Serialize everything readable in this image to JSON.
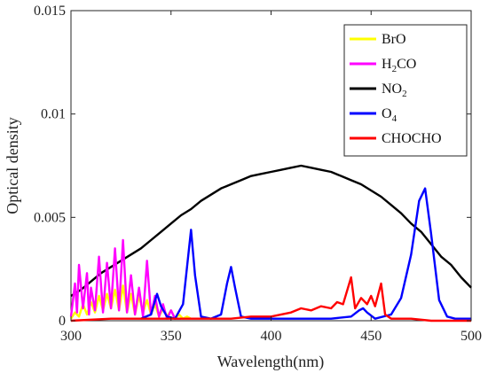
{
  "chart_data": {
    "type": "line",
    "title": "",
    "xlabel": "Wavelength(nm)",
    "ylabel": "Optical density",
    "xlim": [
      300,
      500
    ],
    "ylim": [
      0,
      0.015
    ],
    "x_ticks": [
      "300",
      "350",
      "400",
      "450",
      "500"
    ],
    "y_ticks": [
      "0",
      "0.005",
      "0.01",
      "0.015"
    ],
    "legend_position": "top-right",
    "legend": [
      {
        "base": "BrO",
        "sub": "",
        "color": "#ffff00"
      },
      {
        "base": "H",
        "sub": "2",
        "tail": "CO",
        "color": "#ff00ff"
      },
      {
        "base": "NO",
        "sub": "2",
        "tail": "",
        "color": "#000000"
      },
      {
        "base": "O",
        "sub": "4",
        "tail": "",
        "color": "#0000ff"
      },
      {
        "base": "CHOCHO",
        "sub": "",
        "tail": "",
        "color": "#ff0000"
      }
    ],
    "series": [
      {
        "name": "NO2",
        "color": "#000000",
        "x": [
          300,
          305,
          310,
          315,
          320,
          325,
          330,
          335,
          340,
          345,
          350,
          355,
          360,
          365,
          370,
          375,
          380,
          385,
          390,
          395,
          400,
          405,
          410,
          415,
          420,
          425,
          430,
          435,
          440,
          445,
          450,
          455,
          460,
          465,
          470,
          475,
          480,
          485,
          490,
          495,
          500
        ],
        "y": [
          0.0012,
          0.0015,
          0.0019,
          0.0023,
          0.0026,
          0.0029,
          0.0032,
          0.0035,
          0.0039,
          0.0043,
          0.0047,
          0.0051,
          0.0054,
          0.0058,
          0.0061,
          0.0064,
          0.0066,
          0.0068,
          0.007,
          0.0071,
          0.0072,
          0.0073,
          0.0074,
          0.0075,
          0.0074,
          0.0073,
          0.0072,
          0.007,
          0.0068,
          0.0066,
          0.0063,
          0.006,
          0.0056,
          0.0052,
          0.0047,
          0.0043,
          0.0037,
          0.0031,
          0.0027,
          0.0021,
          0.0016
        ]
      },
      {
        "name": "BrO",
        "color": "#ffff00",
        "x": [
          300,
          302,
          304,
          306,
          308,
          310,
          312,
          314,
          316,
          318,
          320,
          322,
          324,
          326,
          328,
          330,
          332,
          334,
          336,
          338,
          340,
          342,
          344,
          346,
          348,
          350,
          352,
          354,
          356,
          358,
          360
        ],
        "y": [
          0.0001,
          0.0004,
          0.0002,
          0.0008,
          0.0003,
          0.0009,
          0.0004,
          0.0012,
          0.0005,
          0.0013,
          0.0006,
          0.0015,
          0.0005,
          0.0017,
          0.0004,
          0.0013,
          0.0003,
          0.0012,
          0.0004,
          0.001,
          0.0003,
          0.0008,
          0.0002,
          0.0006,
          0.0002,
          0.0005,
          0.0001,
          0.0003,
          0.0001,
          0.0002,
          0.0001
        ]
      },
      {
        "name": "H2CO",
        "color": "#ff00ff",
        "x": [
          300,
          302,
          303,
          304,
          306,
          308,
          309,
          310,
          312,
          314,
          316,
          318,
          320,
          322,
          324,
          326,
          328,
          330,
          332,
          334,
          336,
          338,
          340,
          342,
          344,
          346,
          348,
          350,
          352,
          355
        ],
        "y": [
          0.0002,
          0.0018,
          0.0004,
          0.0027,
          0.0006,
          0.0023,
          0.0003,
          0.0016,
          0.0005,
          0.0031,
          0.0004,
          0.0028,
          0.0006,
          0.0035,
          0.0005,
          0.0039,
          0.0004,
          0.0022,
          0.0003,
          0.0016,
          0.0002,
          0.0029,
          0.0003,
          0.0012,
          0.0002,
          0.0008,
          0.0001,
          0.0005,
          0.0001,
          0.0001
        ]
      },
      {
        "name": "O4",
        "color": "#0000ff",
        "x": [
          335,
          340,
          343,
          345,
          348,
          352,
          356,
          358,
          360,
          362,
          365,
          370,
          375,
          378,
          380,
          382,
          385,
          390,
          400,
          410,
          420,
          430,
          440,
          444,
          446,
          448,
          452,
          460,
          465,
          470,
          474,
          477,
          480,
          484,
          488,
          492,
          500
        ],
        "y": [
          0.0001,
          0.0003,
          0.0013,
          0.0007,
          0.0002,
          0.0001,
          0.0008,
          0.0026,
          0.0044,
          0.0022,
          0.0002,
          0.0001,
          0.0003,
          0.0018,
          0.0026,
          0.0016,
          0.0002,
          0.0001,
          0.0001,
          0.0001,
          0.0001,
          0.0001,
          0.0002,
          0.0005,
          0.0006,
          0.0004,
          0.0001,
          0.0003,
          0.0011,
          0.0032,
          0.0058,
          0.0064,
          0.0042,
          0.001,
          0.0002,
          0.0001,
          0.0001
        ]
      },
      {
        "name": "CHOCHO",
        "color": "#ff0000",
        "x": [
          300,
          320,
          340,
          360,
          380,
          390,
          400,
          410,
          415,
          420,
          425,
          430,
          433,
          436,
          440,
          442,
          445,
          448,
          450,
          452,
          455,
          457,
          460,
          470,
          480,
          490,
          500
        ],
        "y": [
          0.0,
          0.0001,
          0.0001,
          0.0001,
          0.0001,
          0.0002,
          0.0002,
          0.0004,
          0.0006,
          0.0005,
          0.0007,
          0.0006,
          0.0009,
          0.0008,
          0.0021,
          0.0006,
          0.0011,
          0.0008,
          0.0012,
          0.0007,
          0.0018,
          0.0003,
          0.0001,
          0.0001,
          0.0,
          0.0,
          0.0
        ]
      }
    ]
  }
}
